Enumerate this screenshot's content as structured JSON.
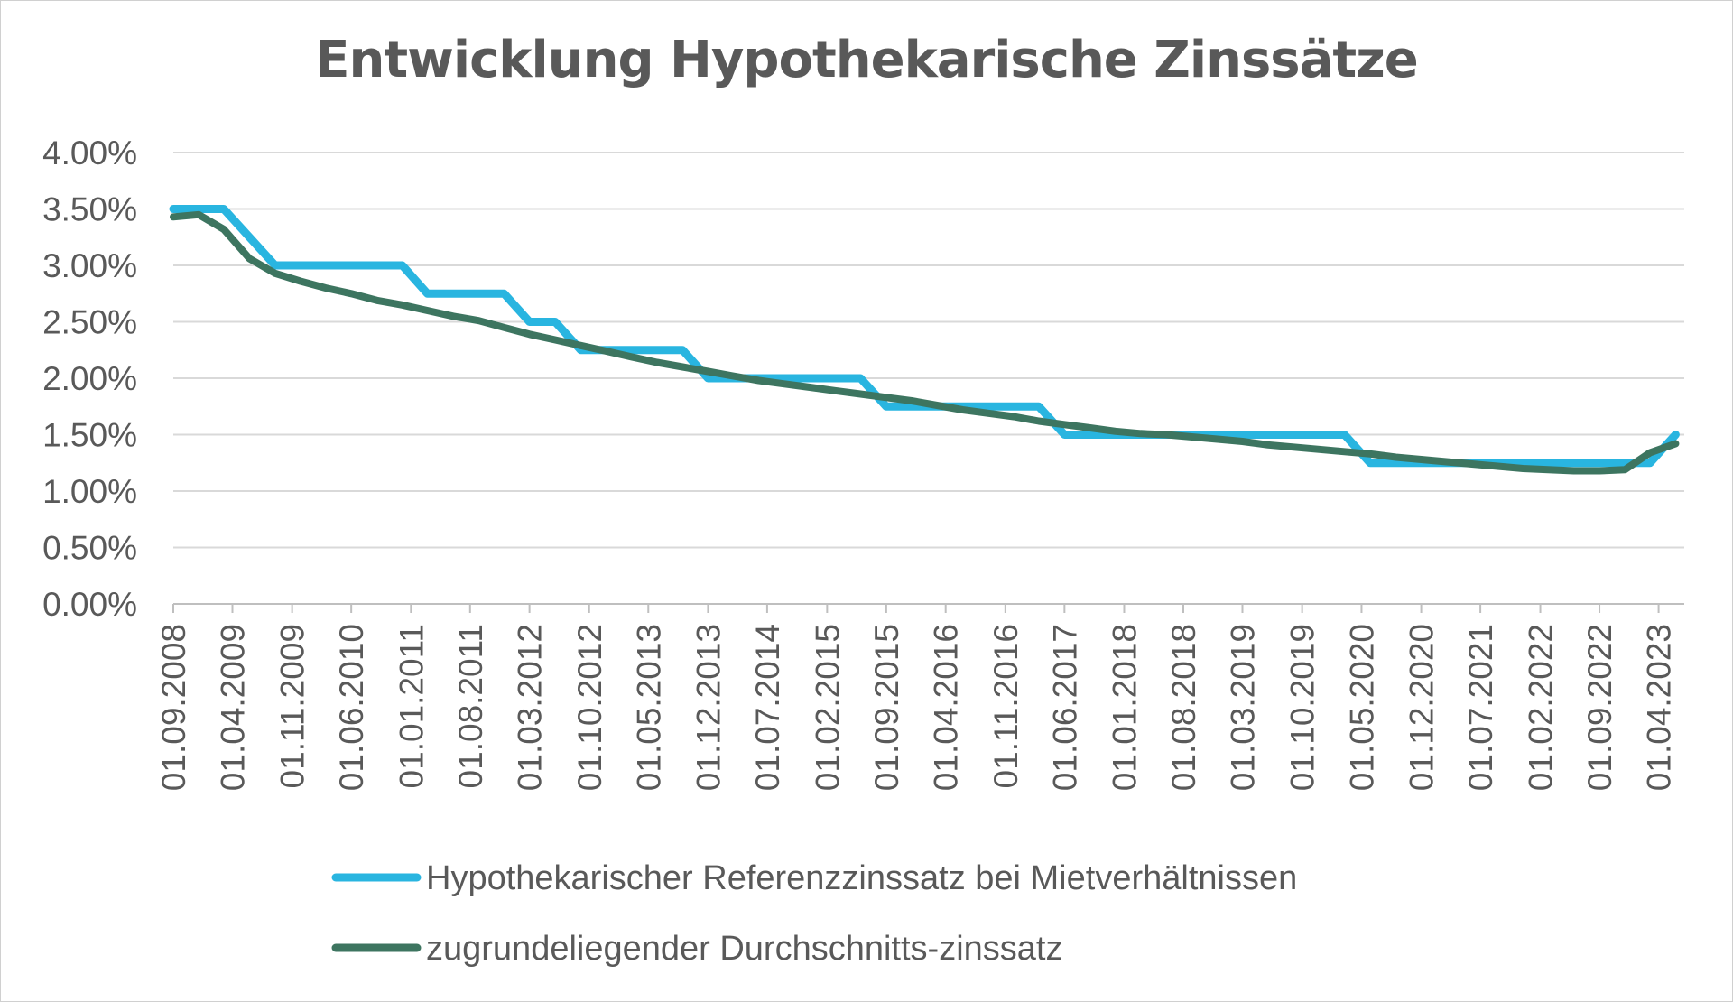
{
  "chart_data": {
    "type": "line",
    "title": "Entwicklung Hypothekarische Zinssätze",
    "xlabel": "",
    "ylabel": "",
    "ylim": [
      0,
      0.04
    ],
    "y_ticks": [
      "0.00%",
      "0.50%",
      "1.00%",
      "1.50%",
      "2.00%",
      "2.50%",
      "3.00%",
      "3.50%",
      "4.00%"
    ],
    "x_tick_labels": [
      "01.09.2008",
      "01.04.2009",
      "01.11.2009",
      "01.06.2010",
      "01.01.2011",
      "01.08.2011",
      "01.03.2012",
      "01.10.2012",
      "01.05.2013",
      "01.12.2013",
      "01.07.2014",
      "01.02.2015",
      "01.09.2015",
      "01.04.2016",
      "01.11.2016",
      "01.06.2017",
      "01.01.2018",
      "01.08.2018",
      "01.03.2019",
      "01.10.2019",
      "01.05.2020",
      "01.12.2020",
      "01.07.2021",
      "01.02.2022",
      "01.09.2022",
      "01.04.2023"
    ],
    "x": [
      "01.09.2008",
      "01.12.2008",
      "01.03.2009",
      "01.06.2009",
      "01.09.2009",
      "01.12.2009",
      "01.03.2010",
      "01.06.2010",
      "01.09.2010",
      "01.12.2010",
      "01.03.2011",
      "01.06.2011",
      "01.09.2011",
      "01.12.2011",
      "01.03.2012",
      "01.06.2012",
      "01.09.2012",
      "01.12.2012",
      "01.03.2013",
      "01.06.2013",
      "01.09.2013",
      "01.12.2013",
      "01.03.2014",
      "01.06.2014",
      "01.09.2014",
      "01.12.2014",
      "01.03.2015",
      "01.06.2015",
      "01.09.2015",
      "01.12.2015",
      "01.03.2016",
      "01.06.2016",
      "01.09.2016",
      "01.12.2016",
      "01.03.2017",
      "01.06.2017",
      "01.09.2017",
      "01.12.2017",
      "01.03.2018",
      "01.06.2018",
      "01.09.2018",
      "01.12.2018",
      "01.03.2019",
      "01.06.2019",
      "01.09.2019",
      "01.12.2019",
      "01.03.2020",
      "01.06.2020",
      "01.09.2020",
      "01.12.2020",
      "01.03.2021",
      "01.06.2021",
      "01.09.2021",
      "01.12.2021",
      "01.03.2022",
      "01.06.2022",
      "01.09.2022",
      "01.12.2022",
      "01.03.2023",
      "01.06.2023"
    ],
    "series": [
      {
        "name": "Hypothekarischer Referenzzinssatz bei Mietverhältnissen",
        "color": "#29b5e0",
        "values": [
          0.035,
          0.035,
          0.035,
          0.0325,
          0.03,
          0.03,
          0.03,
          0.03,
          0.03,
          0.03,
          0.0275,
          0.0275,
          0.0275,
          0.0275,
          0.025,
          0.025,
          0.0225,
          0.0225,
          0.0225,
          0.0225,
          0.0225,
          0.02,
          0.02,
          0.02,
          0.02,
          0.02,
          0.02,
          0.02,
          0.0175,
          0.0175,
          0.0175,
          0.0175,
          0.0175,
          0.0175,
          0.0175,
          0.015,
          0.015,
          0.015,
          0.015,
          0.015,
          0.015,
          0.015,
          0.015,
          0.015,
          0.015,
          0.015,
          0.015,
          0.0125,
          0.0125,
          0.0125,
          0.0125,
          0.0125,
          0.0125,
          0.0125,
          0.0125,
          0.0125,
          0.0125,
          0.0125,
          0.0125,
          0.015
        ]
      },
      {
        "name": "zugrundeliegender Durchschnitts-zinssatz",
        "color": "#3d7560",
        "values": [
          0.0343,
          0.0345,
          0.0332,
          0.0306,
          0.0293,
          0.0286,
          0.028,
          0.0275,
          0.0269,
          0.0265,
          0.026,
          0.0255,
          0.0251,
          0.0245,
          0.0239,
          0.0234,
          0.0229,
          0.0224,
          0.0219,
          0.0214,
          0.021,
          0.0206,
          0.0202,
          0.0198,
          0.0195,
          0.0192,
          0.0189,
          0.0186,
          0.0183,
          0.018,
          0.0176,
          0.0172,
          0.0169,
          0.0166,
          0.0162,
          0.0159,
          0.0156,
          0.0153,
          0.0151,
          0.015,
          0.0148,
          0.0146,
          0.0144,
          0.0141,
          0.0139,
          0.0137,
          0.0135,
          0.0133,
          0.013,
          0.0128,
          0.0126,
          0.0124,
          0.0122,
          0.012,
          0.0119,
          0.0118,
          0.0118,
          0.0119,
          0.0134,
          0.0142
        ]
      }
    ],
    "grid": true,
    "legend_position": "bottom"
  }
}
